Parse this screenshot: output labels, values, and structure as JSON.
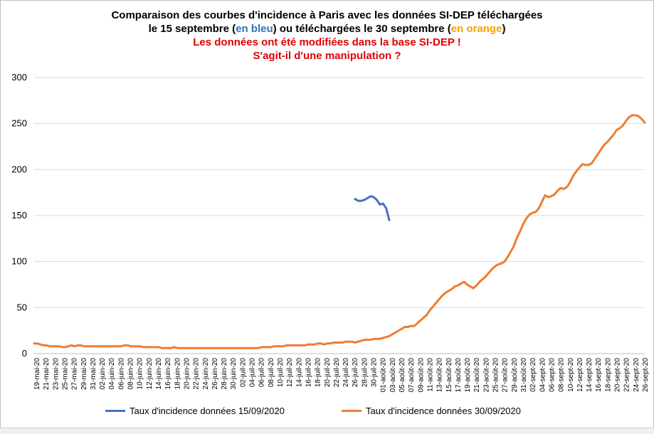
{
  "title": {
    "line1": "Comparaison des courbes d'incidence à Paris avec les données SI-DEP téléchargées",
    "line2_a": "le 15 septembre (",
    "line2_blue": "en bleu",
    "line2_b": ") ou téléchargées le 30 septembre (",
    "line2_orange": "en orange",
    "line2_c": ")",
    "line3": "Les données ont été modifiées dans la base SI-DEP !",
    "line4": "S'agit-il d'une manipulation ?"
  },
  "colors": {
    "blue": "#4472c4",
    "orange": "#ed7d31",
    "grid": "#d9d9d9",
    "title_blue": "#2e75b6",
    "title_orange": "#f4a300",
    "title_red": "#e00000"
  },
  "chart_data": {
    "type": "line",
    "title": "Comparaison des courbes d'incidence à Paris avec les données SI-DEP téléchargées le 15 septembre (en bleu) ou téléchargées le 30 septembre (en orange) — Les données ont été modifiées dans la base SI-DEP ! S'agit-il d'une manipulation ?",
    "ylim": [
      0,
      300
    ],
    "yticks": [
      0,
      50,
      100,
      150,
      200,
      250,
      300
    ],
    "grid": "horizontal",
    "legend": "bottom",
    "x_labels": [
      "19-mai-20",
      "21-mai-20",
      "23-mai-20",
      "25-mai-20",
      "27-mai-20",
      "29-mai-20",
      "31-mai-20",
      "02-juin-20",
      "04-juin-20",
      "06-juin-20",
      "08-juin-20",
      "10-juin-20",
      "12-juin-20",
      "14-juin-20",
      "16-juin-20",
      "18-juin-20",
      "20-juin-20",
      "22-juin-20",
      "24-juin-20",
      "26-juin-20",
      "28-juin-20",
      "30-juin-20",
      "02-juil-20",
      "04-juil-20",
      "06-juil-20",
      "08-juil-20",
      "10-juil-20",
      "12-juil-20",
      "14-juil-20",
      "16-juil-20",
      "18-juil-20",
      "20-juil-20",
      "22-juil-20",
      "24-juil-20",
      "26-juil-20",
      "28-juil-20",
      "30-juil-20",
      "01-août-20",
      "03-août-20",
      "05-août-20",
      "07-août-20",
      "09-août-20",
      "11-août-20",
      "13-août-20",
      "15-août-20",
      "17-août-20",
      "19-août-20",
      "21-août-20",
      "23-août-20",
      "25-août-20",
      "27-août-20",
      "29-août-20",
      "31-août-20",
      "02-sept-20",
      "04-sept-20",
      "06-sept-20",
      "08-sept-20",
      "10-sept-20",
      "12-sept-20",
      "14-sept-20",
      "16-sept-20",
      "18-sept-20",
      "20-sept-20",
      "22-sept-20",
      "24-sept-20",
      "26-sept-20"
    ],
    "series": [
      {
        "name": "Taux d'incidence données 15/09/2020",
        "color": "#4472c4",
        "values": [
          168,
          166,
          166,
          167,
          169,
          171,
          170,
          167,
          162,
          163,
          158,
          145
        ],
        "start_index": 103
      },
      {
        "name": "Taux d'incidence données 30/09/2020",
        "color": "#ed7d31",
        "values": [
          11,
          11,
          10,
          9,
          9,
          8,
          8,
          8,
          8,
          7,
          7,
          8,
          9,
          8,
          9,
          9,
          8,
          8,
          8,
          8,
          8,
          8,
          8,
          8,
          8,
          8,
          8,
          8,
          8,
          9,
          9,
          8,
          8,
          8,
          8,
          7,
          7,
          7,
          7,
          7,
          7,
          6,
          6,
          6,
          6,
          7,
          6,
          6,
          6,
          6,
          6,
          6,
          6,
          6,
          6,
          6,
          6,
          6,
          6,
          6,
          6,
          6,
          6,
          6,
          6,
          6,
          6,
          6,
          6,
          6,
          6,
          6,
          6,
          7,
          7,
          7,
          7,
          8,
          8,
          8,
          8,
          9,
          9,
          9,
          9,
          9,
          9,
          9,
          10,
          10,
          10,
          11,
          11,
          10,
          11,
          11,
          12,
          12,
          12,
          12,
          13,
          13,
          13,
          12,
          13,
          14,
          15,
          15,
          15,
          16,
          16,
          16,
          17,
          18,
          19,
          21,
          23,
          25,
          27,
          29,
          29,
          30,
          30,
          33,
          36,
          39,
          42,
          47,
          51,
          55,
          59,
          63,
          66,
          68,
          70,
          73,
          74,
          76,
          78,
          75,
          73,
          71,
          74,
          78,
          81,
          84,
          88,
          92,
          95,
          97,
          98,
          100,
          105,
          111,
          117,
          126,
          133,
          141,
          147,
          151,
          153,
          154,
          158,
          165,
          172,
          170,
          171,
          173,
          177,
          180,
          179,
          181,
          186,
          193,
          198,
          202,
          206,
          205,
          205,
          207,
          212,
          217,
          222,
          227,
          230,
          234,
          238,
          243,
          245,
          248,
          253,
          257,
          259,
          259,
          258,
          255,
          251
        ],
        "start_index": 0
      }
    ]
  },
  "legend": {
    "blue_label": "Taux d'incidence données 15/09/2020",
    "orange_label": "Taux d'incidence données 30/09/2020"
  }
}
